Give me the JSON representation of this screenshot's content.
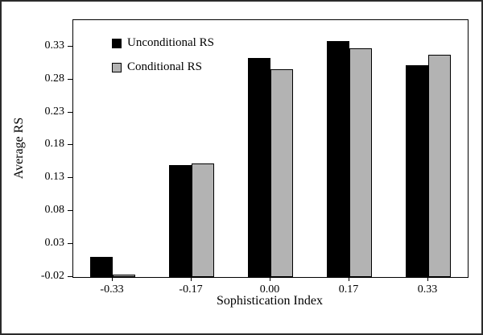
{
  "chart_data": {
    "type": "bar",
    "categories": [
      "-0.33",
      "-0.17",
      "0.00",
      "0.17",
      "0.33"
    ],
    "series": [
      {
        "name": "Unconditional RS",
        "color": "#000000",
        "values": [
          0.01,
          0.15,
          0.312,
          0.338,
          0.302
        ]
      },
      {
        "name": "Conditional RS",
        "color": "#b3b3b3",
        "values": [
          -0.016,
          0.152,
          0.296,
          0.327,
          0.318
        ]
      }
    ],
    "title": "",
    "xlabel": "Sophistication Index",
    "ylabel": "Average RS",
    "ylim": [
      -0.02,
      0.37
    ],
    "ytick_labels": [
      "-0.02",
      "0.03",
      "0.08",
      "0.13",
      "0.18",
      "0.23",
      "0.28",
      "0.33"
    ],
    "grid": false,
    "legend_position": "upper-left",
    "colors": {
      "unconditional": "#000000",
      "conditional": "#b3b3b3",
      "frame": "#000000",
      "background": "#ffffff"
    }
  }
}
